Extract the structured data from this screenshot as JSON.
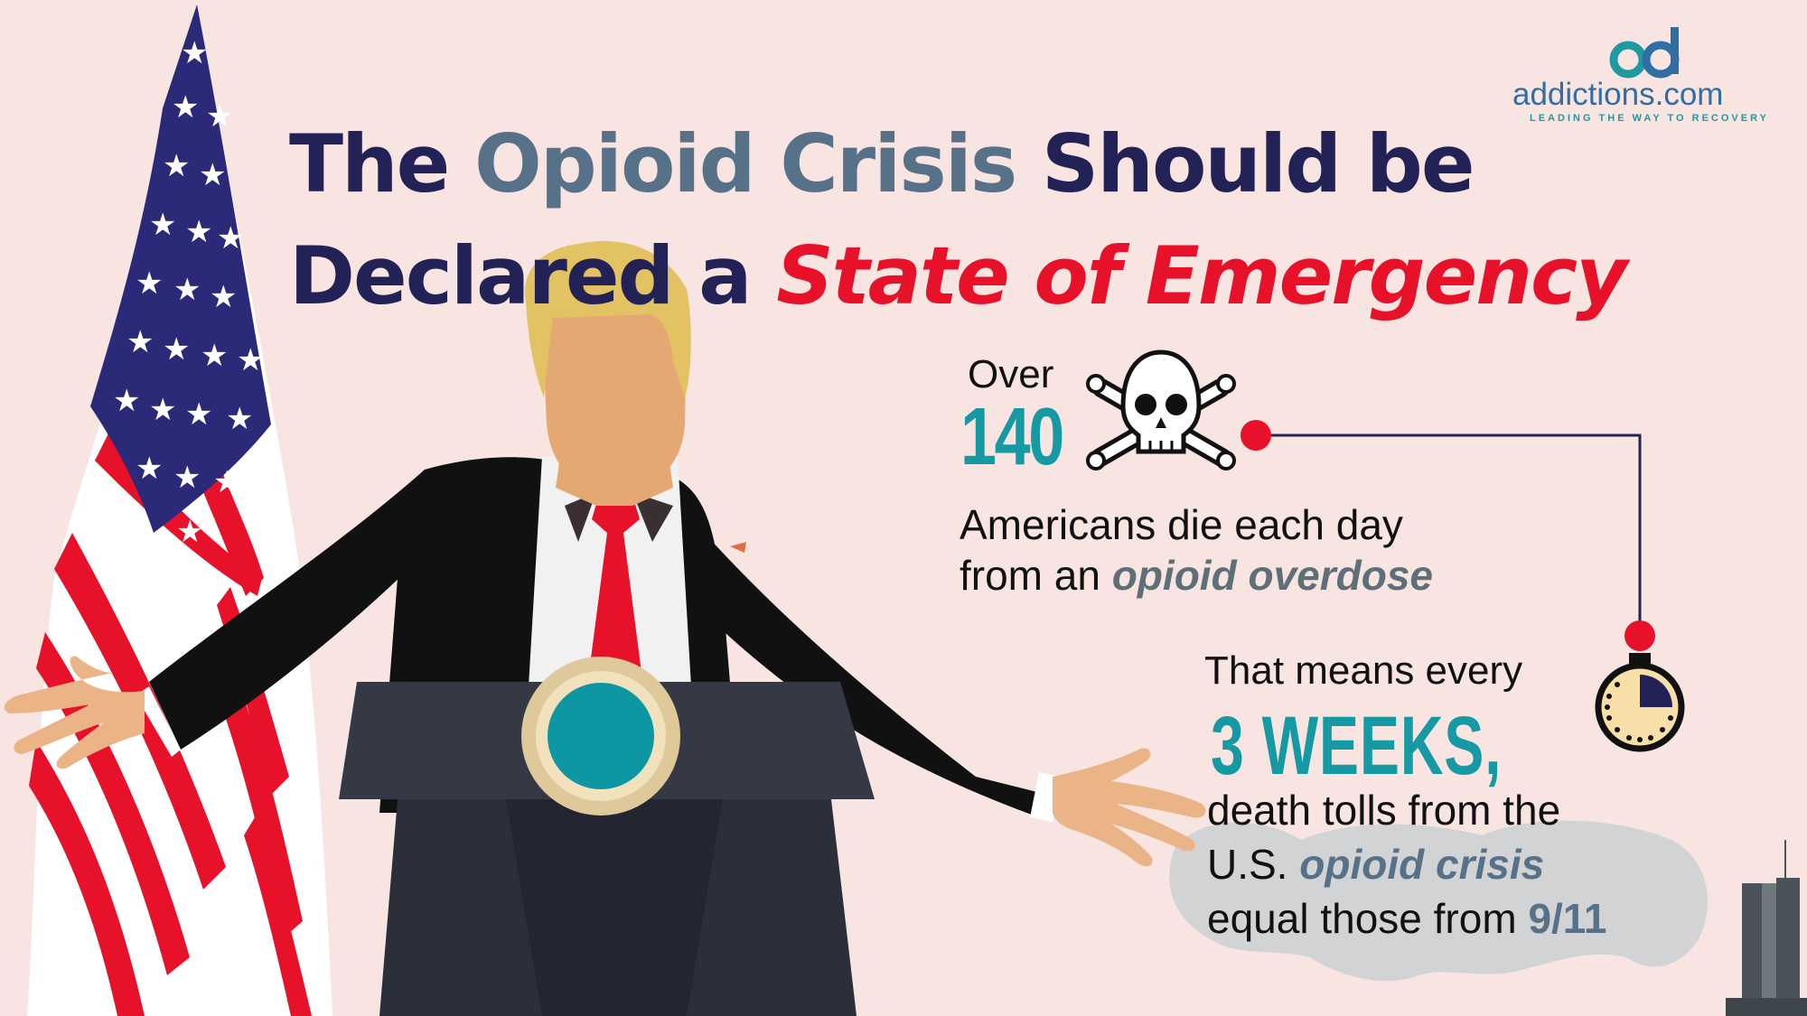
{
  "title": {
    "line1_a": "The",
    "line1_b": "Opioid Crisis",
    "line1_c": "Should be",
    "line2_a": "Declared a",
    "line2_b": "State of Emergency"
  },
  "logo": {
    "mark": "ad",
    "word": "addictions.com",
    "tagline": "LEADING THE WAY TO RECOVERY"
  },
  "stat1": {
    "prefix": "Over",
    "number": "140",
    "line1": "Americans die each day",
    "line2_a": "from an",
    "line2_b": "opioid overdose"
  },
  "stat2": {
    "line1": "That means every",
    "number": "3 WEEKS,",
    "line2": "death tolls from the",
    "line3_a": "U.S.",
    "line3_b": "opioid crisis",
    "line4_a": "equal those from",
    "line4_b": "9/11"
  },
  "icons": {
    "skull": "skull-crossbones-icon",
    "timer": "stopwatch-icon"
  },
  "colors": {
    "background": "#f8e5e1",
    "navy": "#232256",
    "slate": "#577189",
    "red": "#e7112a",
    "teal": "#1599a2"
  }
}
